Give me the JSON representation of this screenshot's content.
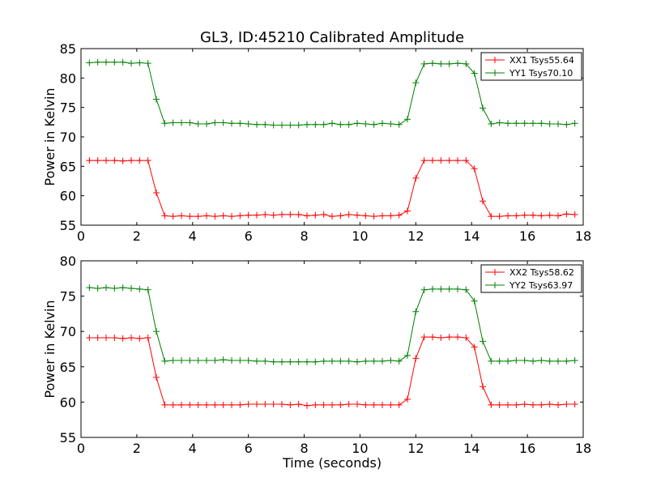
{
  "title": "GL3, ID:45210 Calibrated Amplitude",
  "chart_data": [
    {
      "type": "line",
      "xlabel": "",
      "ylabel": "Power in Kelvin",
      "xlim": [
        0,
        18
      ],
      "ylim": [
        55,
        85
      ],
      "xticks": [
        0,
        2,
        4,
        6,
        8,
        10,
        12,
        14,
        16,
        18
      ],
      "yticks": [
        55,
        60,
        65,
        70,
        75,
        80,
        85
      ],
      "grid": false,
      "legend_position": "top-right",
      "x": [
        0.3,
        0.6,
        0.9,
        1.2,
        1.5,
        1.8,
        2.1,
        2.4,
        2.7,
        3.0,
        3.3,
        3.6,
        3.9,
        4.2,
        4.5,
        4.8,
        5.1,
        5.4,
        5.7,
        6.0,
        6.3,
        6.6,
        6.9,
        7.2,
        7.5,
        7.8,
        8.1,
        8.4,
        8.7,
        9.0,
        9.3,
        9.6,
        9.9,
        10.2,
        10.5,
        10.8,
        11.1,
        11.4,
        11.7,
        12.0,
        12.3,
        12.6,
        12.9,
        13.2,
        13.5,
        13.8,
        14.1,
        14.4,
        14.7,
        15.0,
        15.3,
        15.6,
        15.9,
        16.2,
        16.5,
        16.8,
        17.1,
        17.4,
        17.7
      ],
      "series": [
        {
          "name": "XX1 Tsys55.64",
          "color": "#ff0000",
          "values": [
            66.0,
            66.0,
            66.0,
            66.0,
            65.9,
            66.0,
            66.0,
            66.0,
            60.5,
            56.6,
            56.5,
            56.6,
            56.5,
            56.5,
            56.6,
            56.5,
            56.6,
            56.5,
            56.6,
            56.7,
            56.7,
            56.8,
            56.7,
            56.8,
            56.8,
            56.8,
            56.6,
            56.7,
            56.8,
            56.5,
            56.6,
            56.8,
            56.7,
            56.6,
            56.5,
            56.6,
            56.6,
            56.7,
            57.4,
            63.0,
            66.0,
            66.0,
            66.0,
            66.0,
            66.0,
            66.0,
            64.6,
            59.1,
            56.5,
            56.5,
            56.6,
            56.6,
            56.7,
            56.7,
            56.6,
            56.7,
            56.6,
            56.9,
            56.8
          ]
        },
        {
          "name": "YY1 Tsys70.10",
          "color": "#008000",
          "values": [
            82.6,
            82.7,
            82.7,
            82.7,
            82.7,
            82.5,
            82.6,
            82.5,
            76.4,
            72.3,
            72.4,
            72.4,
            72.4,
            72.2,
            72.2,
            72.4,
            72.4,
            72.3,
            72.3,
            72.2,
            72.1,
            72.1,
            72.0,
            72.0,
            72.0,
            72.0,
            72.1,
            72.1,
            72.1,
            72.3,
            72.1,
            72.1,
            72.3,
            72.2,
            72.1,
            72.3,
            72.2,
            72.1,
            73.0,
            79.2,
            82.4,
            82.5,
            82.4,
            82.4,
            82.5,
            82.4,
            80.8,
            74.9,
            72.2,
            72.4,
            72.3,
            72.3,
            72.3,
            72.3,
            72.3,
            72.2,
            72.2,
            72.1,
            72.3
          ]
        }
      ]
    },
    {
      "type": "line",
      "xlabel": "Time (seconds)",
      "ylabel": "Power in Kelvin",
      "xlim": [
        0,
        18
      ],
      "ylim": [
        55,
        80
      ],
      "xticks": [
        0,
        2,
        4,
        6,
        8,
        10,
        12,
        14,
        16,
        18
      ],
      "yticks": [
        55,
        60,
        65,
        70,
        75,
        80
      ],
      "grid": false,
      "legend_position": "top-right",
      "x": [
        0.3,
        0.6,
        0.9,
        1.2,
        1.5,
        1.8,
        2.1,
        2.4,
        2.7,
        3.0,
        3.3,
        3.6,
        3.9,
        4.2,
        4.5,
        4.8,
        5.1,
        5.4,
        5.7,
        6.0,
        6.3,
        6.6,
        6.9,
        7.2,
        7.5,
        7.8,
        8.1,
        8.4,
        8.7,
        9.0,
        9.3,
        9.6,
        9.9,
        10.2,
        10.5,
        10.8,
        11.1,
        11.4,
        11.7,
        12.0,
        12.3,
        12.6,
        12.9,
        13.2,
        13.5,
        13.8,
        14.1,
        14.4,
        14.7,
        15.0,
        15.3,
        15.6,
        15.9,
        16.2,
        16.5,
        16.8,
        17.1,
        17.4,
        17.7
      ],
      "series": [
        {
          "name": "XX2 Tsys58.62",
          "color": "#ff0000",
          "values": [
            69.1,
            69.1,
            69.1,
            69.1,
            69.0,
            69.1,
            69.0,
            69.1,
            63.5,
            59.6,
            59.6,
            59.6,
            59.6,
            59.6,
            59.6,
            59.6,
            59.6,
            59.6,
            59.6,
            59.7,
            59.7,
            59.7,
            59.7,
            59.7,
            59.6,
            59.7,
            59.5,
            59.6,
            59.6,
            59.6,
            59.6,
            59.7,
            59.7,
            59.6,
            59.6,
            59.6,
            59.6,
            59.6,
            60.4,
            66.2,
            69.2,
            69.2,
            69.1,
            69.2,
            69.2,
            69.1,
            67.8,
            62.2,
            59.6,
            59.6,
            59.6,
            59.6,
            59.7,
            59.6,
            59.6,
            59.7,
            59.6,
            59.7,
            59.7
          ]
        },
        {
          "name": "YY2 Tsys63.97",
          "color": "#008000",
          "values": [
            76.2,
            76.1,
            76.2,
            76.1,
            76.2,
            76.1,
            76.0,
            75.9,
            70.0,
            65.8,
            65.9,
            65.9,
            65.9,
            65.9,
            65.9,
            65.9,
            66.0,
            65.9,
            65.9,
            65.9,
            65.8,
            65.8,
            65.7,
            65.7,
            65.7,
            65.7,
            65.7,
            65.7,
            65.8,
            65.8,
            65.8,
            65.8,
            65.7,
            65.8,
            65.8,
            65.8,
            65.9,
            65.8,
            66.6,
            72.8,
            75.9,
            76.0,
            76.0,
            76.0,
            76.0,
            75.9,
            74.3,
            68.6,
            65.8,
            65.8,
            65.8,
            65.9,
            65.9,
            65.8,
            65.9,
            65.8,
            65.8,
            65.8,
            65.9
          ]
        }
      ]
    }
  ]
}
